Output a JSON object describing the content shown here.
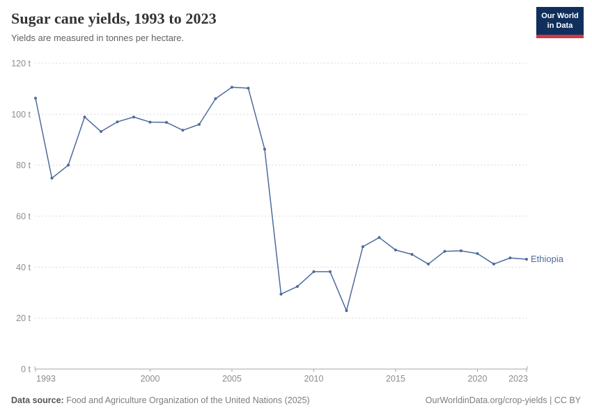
{
  "header": {
    "title": "Sugar cane yields, 1993 to 2023",
    "subtitle": "Yields are measured in tonnes per hectare.",
    "logo": {
      "line1": "Our World",
      "line2": "in Data"
    }
  },
  "chart_data": {
    "type": "line",
    "title": "Sugar cane yields, 1993 to 2023",
    "ylabel": "tonnes per hectare",
    "xlabel": "",
    "x": [
      1993,
      1994,
      1995,
      1996,
      1997,
      1998,
      1999,
      2000,
      2001,
      2002,
      2003,
      2004,
      2005,
      2006,
      2007,
      2008,
      2009,
      2010,
      2011,
      2012,
      2013,
      2014,
      2015,
      2016,
      2017,
      2018,
      2019,
      2020,
      2021,
      2022,
      2023
    ],
    "series": [
      {
        "name": "Ethiopia",
        "color": "#4c6a9c",
        "values": [
          106.3,
          74.9,
          80.0,
          98.9,
          93.2,
          97.0,
          98.9,
          96.9,
          96.8,
          93.7,
          96.0,
          106.1,
          110.6,
          110.2,
          86.3,
          29.4,
          32.4,
          38.2,
          38.2,
          22.9,
          48.0,
          51.6,
          46.7,
          45.0,
          41.2,
          46.2,
          46.4,
          45.3,
          41.2,
          43.6,
          43.1
        ]
      }
    ],
    "xlim": [
      1993,
      2023
    ],
    "ylim": [
      0,
      120
    ],
    "x_ticks": [
      1993,
      2000,
      2005,
      2010,
      2015,
      2020,
      2023
    ],
    "y_ticks": [
      0,
      20,
      40,
      60,
      80,
      100,
      120
    ],
    "y_tick_suffix": " t",
    "grid": "horizontal-dashed",
    "legend_position": "line-end-label"
  },
  "footer": {
    "source_label": "Data source:",
    "source_text": " Food and Agriculture Organization of the United Nations (2025)",
    "credit": "OurWorldinData.org/crop-yields | CC BY"
  },
  "colors": {
    "line": "#4c6a9c",
    "grid": "#d9d9d9",
    "axis": "#a5a5a5",
    "tick_text": "#8c8c8c",
    "logo_navy": "#112f5c",
    "logo_red": "#cc3b44"
  }
}
